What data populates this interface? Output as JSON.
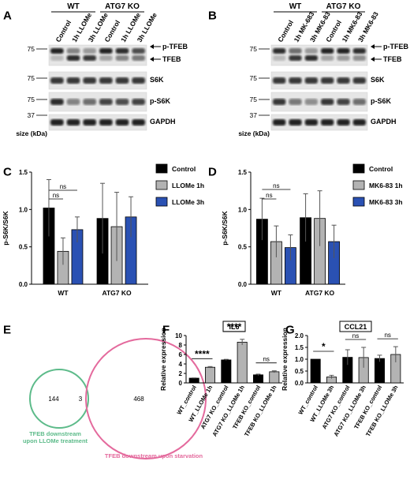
{
  "panel_labels": [
    "A",
    "B",
    "C",
    "D",
    "E",
    "F",
    "G"
  ],
  "blots": [
    {
      "groups": [
        "WT",
        "ATG7 KO"
      ],
      "lanes": [
        "Control",
        "1h LLOMe",
        "3h LLOMe",
        "Control",
        "1h LLOMe",
        "3h LLOMe"
      ],
      "mw_markers": [
        "75",
        "75",
        "75",
        "37"
      ],
      "size_label": "size (kDa)",
      "bands": [
        "p-TFEB",
        "TFEB",
        "S6K",
        "p-S6K",
        "GAPDH"
      ]
    },
    {
      "groups": [
        "WT",
        "ATG7 KO"
      ],
      "lanes": [
        "Control",
        "1h MK-683",
        "3h MK6-83",
        "Control",
        "1h MK6-83",
        "3h MK6-83"
      ],
      "mw_markers": [
        "75",
        "75",
        "75",
        "37"
      ],
      "size_label": "size (kDa)",
      "bands": [
        "p-TFEB",
        "TFEB",
        "S6K",
        "p-S6K",
        "GAPDH"
      ]
    }
  ],
  "venn": {
    "left_count": "144",
    "overlap_count": "3",
    "right_count": "468",
    "left_label_lines": [
      "TFEB downstream",
      "upon LLOMe treatment"
    ],
    "right_label": "TFEB downstream upon starvation",
    "left_color": "#5dbb8a",
    "right_color": "#e46a9d"
  },
  "chart_data": [
    {
      "panel": "C",
      "type": "bar",
      "categories": [
        "WT",
        "ATG7 KO"
      ],
      "ylabel": "p-S6K/S6K",
      "ylim": [
        0,
        1.5
      ],
      "yticks": [
        "0.0",
        "0.5",
        "1.0",
        "1.5"
      ],
      "series": [
        {
          "name": "Control",
          "color": "#000000",
          "values": [
            1.02,
            0.88
          ],
          "errors": [
            0.38,
            0.47
          ]
        },
        {
          "name": "LLOMe 1h",
          "color": "#b3b3b3",
          "values": [
            0.44,
            0.77
          ],
          "errors": [
            0.18,
            0.46
          ]
        },
        {
          "name": "LLOMe 3h",
          "color": "#2a51b3",
          "values": [
            0.73,
            0.9
          ],
          "errors": [
            0.17,
            0.27
          ]
        }
      ],
      "significance": [
        {
          "label": "ns"
        },
        {
          "label": "ns"
        }
      ],
      "legend": "right"
    },
    {
      "panel": "D",
      "type": "bar",
      "categories": [
        "WT",
        "ATG7 KO"
      ],
      "ylabel": "p-S6K/S6K",
      "ylim": [
        0,
        1.5
      ],
      "yticks": [
        "0.0",
        "0.5",
        "1.0",
        "1.5"
      ],
      "series": [
        {
          "name": "Control",
          "color": "#000000",
          "values": [
            0.87,
            0.89
          ],
          "errors": [
            0.28,
            0.32
          ]
        },
        {
          "name": "MK6-83 1h",
          "color": "#b3b3b3",
          "values": [
            0.57,
            0.88
          ],
          "errors": [
            0.21,
            0.37
          ]
        },
        {
          "name": "MK6-83 3h",
          "color": "#2a51b3",
          "values": [
            0.49,
            0.57
          ],
          "errors": [
            0.17,
            0.22
          ]
        }
      ],
      "significance": [
        {
          "label": "ns"
        },
        {
          "label": "ns"
        }
      ],
      "legend": "right"
    },
    {
      "panel": "F",
      "type": "bar",
      "title": "IL6",
      "ylabel": "Relative expression",
      "ylim": [
        0,
        10
      ],
      "yticks": [
        "0",
        "2",
        "4",
        "6",
        "8",
        "10"
      ],
      "categories": [
        "WT_control",
        "WT_LLOMe 1h",
        "ATG7 KO_control",
        "ATG7 KO_LLOMe 1h",
        "TFEB KO_control",
        "TFEB KO_LLOMe 1h"
      ],
      "values": [
        1.0,
        3.3,
        4.85,
        8.6,
        1.7,
        2.35
      ],
      "errors": [
        0.05,
        0.15,
        0.12,
        0.6,
        0.15,
        0.2
      ],
      "colors": [
        "#000000",
        "#b3b3b3",
        "#000000",
        "#b3b3b3",
        "#000000",
        "#b3b3b3"
      ],
      "significance": [
        {
          "label": "****",
          "pair": [
            0,
            1
          ]
        },
        {
          "label": "****",
          "pair": [
            2,
            3
          ]
        },
        {
          "label": "ns",
          "pair": [
            4,
            5
          ]
        }
      ]
    },
    {
      "panel": "G",
      "type": "bar",
      "title": "CCL21",
      "ylabel": "Relative expression",
      "ylim": [
        0,
        2.0
      ],
      "yticks": [
        "0.0",
        "0.5",
        "1.0",
        "1.5",
        "2.0"
      ],
      "categories": [
        "WT_control",
        "WT_LLOMe 3h",
        "ATG7 KO_control",
        "ATG7 KO_LLOMe 3h",
        "TFEB KO_control",
        "TFEB KO_LLOMe 3h"
      ],
      "values": [
        1.0,
        0.25,
        1.08,
        1.07,
        1.03,
        1.2
      ],
      "errors": [
        0.0,
        0.07,
        0.32,
        0.43,
        0.14,
        0.33
      ],
      "colors": [
        "#000000",
        "#b3b3b3",
        "#000000",
        "#b3b3b3",
        "#000000",
        "#b3b3b3"
      ],
      "significance": [
        {
          "label": "*",
          "pair": [
            0,
            1
          ]
        },
        {
          "label": "ns",
          "pair": [
            2,
            3
          ]
        },
        {
          "label": "ns",
          "pair": [
            4,
            5
          ]
        }
      ]
    }
  ]
}
